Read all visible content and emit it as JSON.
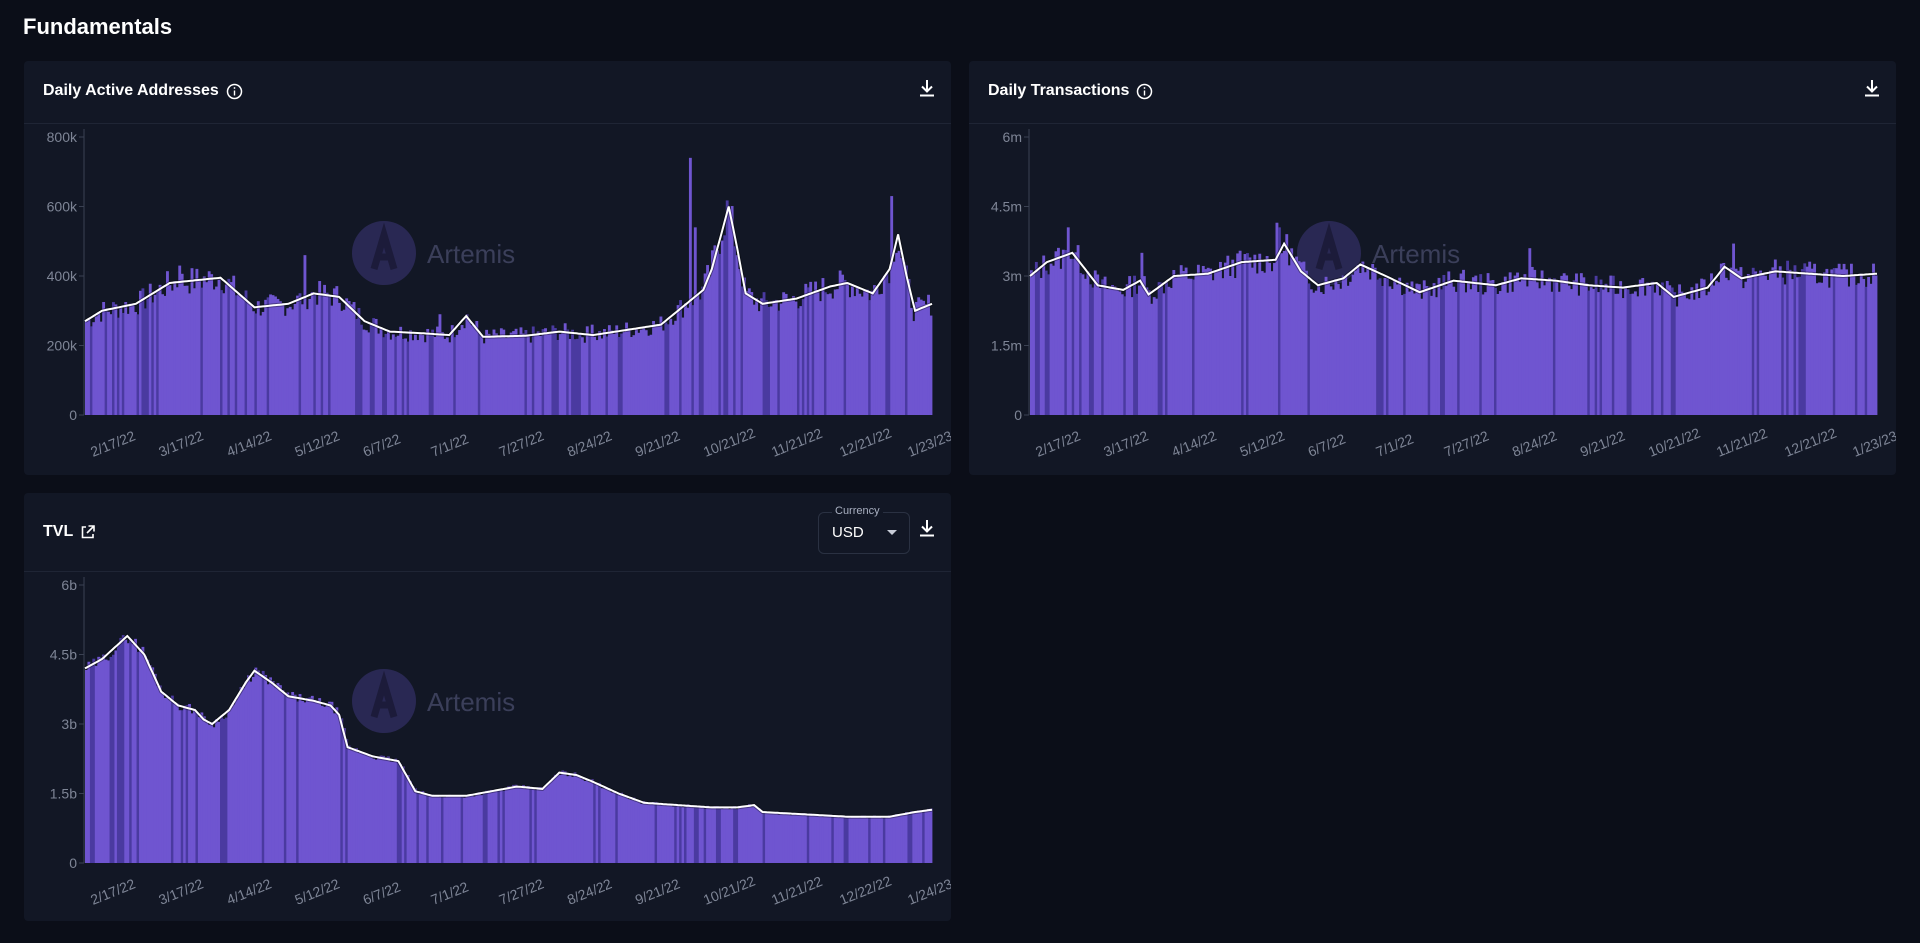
{
  "page": {
    "section_title": "Fundamentals"
  },
  "colors": {
    "bar": "#6f55d0",
    "bar_dark": "#4a3aa0",
    "line": "#ffffff",
    "axis": "#7e8596",
    "background": "#121725"
  },
  "watermark": "Artemis",
  "cards": {
    "daa": {
      "title": "Daily Active Addresses",
      "download_icon": "download-icon",
      "info_icon": "info-icon"
    },
    "dtx": {
      "title": "Daily Transactions",
      "download_icon": "download-icon",
      "info_icon": "info-icon"
    },
    "tvl": {
      "title": "TVL",
      "external_icon": "external-link-icon",
      "download_icon": "download-icon",
      "currency": {
        "label": "Currency",
        "value": "USD"
      }
    }
  },
  "chart_data": [
    {
      "id": "daa",
      "type": "bar",
      "title": "Daily Active Addresses",
      "ylim": [
        0,
        800000
      ],
      "y_ticks": [
        "0",
        "200k",
        "400k",
        "600k",
        "800k"
      ],
      "x_ticks": [
        "2/17/22",
        "3/17/22",
        "4/14/22",
        "5/12/22",
        "6/7/22",
        "7/1/22",
        "7/27/22",
        "8/24/22",
        "9/21/22",
        "10/21/22",
        "11/21/22",
        "12/21/22",
        "1/23/23"
      ],
      "keypoints": [
        [
          0,
          270000
        ],
        [
          0.02,
          300000
        ],
        [
          0.06,
          320000
        ],
        [
          0.1,
          380000
        ],
        [
          0.16,
          395000
        ],
        [
          0.2,
          310000
        ],
        [
          0.24,
          320000
        ],
        [
          0.27,
          350000
        ],
        [
          0.3,
          340000
        ],
        [
          0.33,
          270000
        ],
        [
          0.36,
          240000
        ],
        [
          0.4,
          235000
        ],
        [
          0.43,
          230000
        ],
        [
          0.45,
          285000
        ],
        [
          0.47,
          225000
        ],
        [
          0.52,
          228000
        ],
        [
          0.56,
          240000
        ],
        [
          0.6,
          230000
        ],
        [
          0.64,
          245000
        ],
        [
          0.68,
          260000
        ],
        [
          0.7,
          300000
        ],
        [
          0.73,
          360000
        ],
        [
          0.74,
          420000
        ],
        [
          0.76,
          600000
        ],
        [
          0.77,
          480000
        ],
        [
          0.78,
          350000
        ],
        [
          0.8,
          320000
        ],
        [
          0.84,
          335000
        ],
        [
          0.88,
          370000
        ],
        [
          0.9,
          380000
        ],
        [
          0.93,
          350000
        ],
        [
          0.95,
          420000
        ],
        [
          0.96,
          520000
        ],
        [
          0.97,
          400000
        ],
        [
          0.98,
          300000
        ],
        [
          1.0,
          320000
        ]
      ],
      "spikes": [
        [
          0.716,
          740000
        ],
        [
          0.72,
          540000
        ],
        [
          0.953,
          630000
        ],
        [
          0.26,
          460000
        ],
        [
          0.11,
          430000
        ],
        [
          0.42,
          290000
        ],
        [
          0.6,
          260000
        ]
      ],
      "grid": false,
      "legend": "none"
    },
    {
      "id": "dtx",
      "type": "bar",
      "title": "Daily Transactions",
      "ylim": [
        0,
        6000000
      ],
      "y_ticks": [
        "0",
        "1.5m",
        "3m",
        "4.5m",
        "6m"
      ],
      "x_ticks": [
        "2/17/22",
        "3/17/22",
        "4/14/22",
        "5/12/22",
        "6/7/22",
        "7/1/22",
        "7/27/22",
        "8/24/22",
        "9/21/22",
        "10/21/22",
        "11/21/22",
        "12/21/22",
        "1/23/23"
      ],
      "keypoints": [
        [
          0,
          3000000
        ],
        [
          0.02,
          3300000
        ],
        [
          0.05,
          3500000
        ],
        [
          0.08,
          2800000
        ],
        [
          0.11,
          2700000
        ],
        [
          0.13,
          2900000
        ],
        [
          0.14,
          2600000
        ],
        [
          0.17,
          3000000
        ],
        [
          0.21,
          3050000
        ],
        [
          0.25,
          3300000
        ],
        [
          0.29,
          3350000
        ],
        [
          0.3,
          3700000
        ],
        [
          0.32,
          3100000
        ],
        [
          0.34,
          2800000
        ],
        [
          0.37,
          2950000
        ],
        [
          0.39,
          3250000
        ],
        [
          0.42,
          3000000
        ],
        [
          0.46,
          2650000
        ],
        [
          0.5,
          2900000
        ],
        [
          0.55,
          2800000
        ],
        [
          0.58,
          2950000
        ],
        [
          0.62,
          2900000
        ],
        [
          0.66,
          2800000
        ],
        [
          0.7,
          2750000
        ],
        [
          0.74,
          2850000
        ],
        [
          0.76,
          2550000
        ],
        [
          0.78,
          2650000
        ],
        [
          0.8,
          2750000
        ],
        [
          0.82,
          3200000
        ],
        [
          0.84,
          2950000
        ],
        [
          0.88,
          3100000
        ],
        [
          0.92,
          3050000
        ],
        [
          0.96,
          3000000
        ],
        [
          1.0,
          3050000
        ]
      ],
      "spikes": [
        [
          0.044,
          4050000
        ],
        [
          0.29,
          4150000
        ],
        [
          0.295,
          4050000
        ],
        [
          0.83,
          3700000
        ],
        [
          0.59,
          3600000
        ],
        [
          0.13,
          3500000
        ]
      ],
      "grid": false,
      "legend": "none"
    },
    {
      "id": "tvl",
      "type": "bar",
      "title": "TVL",
      "ylim": [
        0,
        6000000000
      ],
      "y_ticks": [
        "0",
        "1.5b",
        "3b",
        "4.5b",
        "6b"
      ],
      "x_ticks": [
        "2/17/22",
        "3/17/22",
        "4/14/22",
        "5/12/22",
        "6/7/22",
        "7/1/22",
        "7/27/22",
        "8/24/22",
        "9/21/22",
        "10/21/22",
        "11/21/22",
        "12/22/22",
        "1/24/23"
      ],
      "keypoints": [
        [
          0,
          4200000000
        ],
        [
          0.02,
          4400000000
        ],
        [
          0.05,
          4900000000
        ],
        [
          0.07,
          4500000000
        ],
        [
          0.09,
          3700000000
        ],
        [
          0.11,
          3400000000
        ],
        [
          0.13,
          3300000000
        ],
        [
          0.14,
          3100000000
        ],
        [
          0.15,
          3000000000
        ],
        [
          0.17,
          3300000000
        ],
        [
          0.19,
          3900000000
        ],
        [
          0.2,
          4150000000
        ],
        [
          0.22,
          3900000000
        ],
        [
          0.24,
          3600000000
        ],
        [
          0.27,
          3500000000
        ],
        [
          0.29,
          3400000000
        ],
        [
          0.3,
          3200000000
        ],
        [
          0.31,
          2500000000
        ],
        [
          0.34,
          2300000000
        ],
        [
          0.37,
          2200000000
        ],
        [
          0.39,
          1550000000
        ],
        [
          0.41,
          1450000000
        ],
        [
          0.45,
          1450000000
        ],
        [
          0.48,
          1550000000
        ],
        [
          0.51,
          1650000000
        ],
        [
          0.54,
          1600000000
        ],
        [
          0.56,
          1950000000
        ],
        [
          0.58,
          1900000000
        ],
        [
          0.6,
          1750000000
        ],
        [
          0.63,
          1500000000
        ],
        [
          0.66,
          1300000000
        ],
        [
          0.7,
          1250000000
        ],
        [
          0.74,
          1200000000
        ],
        [
          0.77,
          1200000000
        ],
        [
          0.79,
          1250000000
        ],
        [
          0.8,
          1100000000
        ],
        [
          0.85,
          1050000000
        ],
        [
          0.9,
          1000000000
        ],
        [
          0.95,
          1000000000
        ],
        [
          0.98,
          1100000000
        ],
        [
          1.0,
          1150000000
        ]
      ],
      "spikes": [],
      "grid": false,
      "legend": "none"
    }
  ]
}
